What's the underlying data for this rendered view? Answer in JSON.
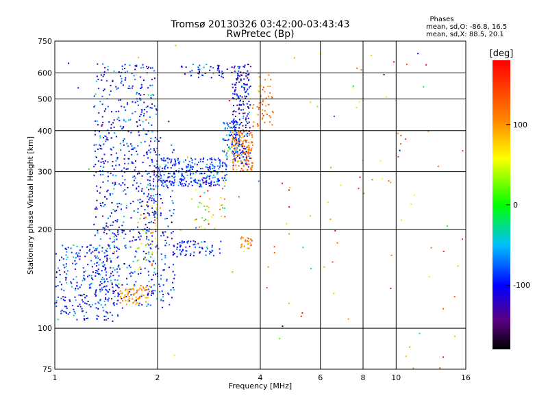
{
  "chart_data": {
    "type": "scatter",
    "title": "Tromsø 20130326 03:42:00-03:43:43",
    "subtitle": "RwPretec (Bp)",
    "xlabel": "Frequency [MHz]",
    "ylabel": "Stationary phase Virtual Height [km]",
    "x_scale": "log",
    "y_scale": "log",
    "xlim": [
      1,
      16
    ],
    "ylim": [
      75,
      750
    ],
    "xticks": [
      1,
      2,
      4,
      6,
      8,
      10,
      16
    ],
    "xtick_labels": [
      "1",
      "2",
      "4",
      "6",
      "8",
      "10",
      "16"
    ],
    "yticks": [
      75,
      100,
      200,
      300,
      400,
      500,
      600,
      750
    ],
    "ytick_labels": [
      "75",
      "100",
      "200",
      "300",
      "400",
      "500",
      "600",
      "750"
    ],
    "grid": true,
    "color_variable": "phase",
    "colorbar": {
      "label": "[deg]",
      "range": [
        -180,
        180
      ],
      "ticks": [
        100,
        0,
        -100
      ],
      "tick_labels": [
        "100",
        "0",
        "-100"
      ]
    },
    "annotations": {
      "heading": "Phases",
      "line_o": "mean, sd,O: -86.8, 16.5",
      "line_x": "mean, sd,X: 88.5, 20.1"
    },
    "series": [
      {
        "name": "O",
        "phase_mean": -86.8,
        "phase_sd": 16.5
      },
      {
        "name": "X",
        "phase_mean": 88.5,
        "phase_sd": 20.1
      }
    ],
    "clusters": [
      {
        "x": [
          1.0,
          1.55
        ],
        "y": [
          105,
          180
        ],
        "phase_mean": -90,
        "phase_sd": 30,
        "count": 260
      },
      {
        "x": [
          1.3,
          2.0
        ],
        "y": [
          115,
          640
        ],
        "phase_mean": -95,
        "phase_sd": 30,
        "count": 650
      },
      {
        "x": [
          1.55,
          1.9
        ],
        "y": [
          118,
          135
        ],
        "phase_mean": 100,
        "phase_sd": 15,
        "count": 70
      },
      {
        "x": [
          1.75,
          2.0
        ],
        "y": [
          150,
          240
        ],
        "phase_mean": 80,
        "phase_sd": 40,
        "count": 45
      },
      {
        "x": [
          1.85,
          2.25
        ],
        "y": [
          115,
          390
        ],
        "phase_mean": -90,
        "phase_sd": 25,
        "count": 160
      },
      {
        "x": [
          2.0,
          3.2
        ],
        "y": [
          270,
          330
        ],
        "phase_mean": -90,
        "phase_sd": 25,
        "count": 260
      },
      {
        "x": [
          2.2,
          3.1
        ],
        "y": [
          165,
          185
        ],
        "phase_mean": -95,
        "phase_sd": 20,
        "count": 70
      },
      {
        "x": [
          2.3,
          3.2
        ],
        "y": [
          580,
          640
        ],
        "phase_mean": -95,
        "phase_sd": 20,
        "count": 45
      },
      {
        "x": [
          2.5,
          3.2
        ],
        "y": [
          200,
          280
        ],
        "phase_mean": 60,
        "phase_sd": 60,
        "count": 40
      },
      {
        "x": [
          3.1,
          3.5
        ],
        "y": [
          330,
          430
        ],
        "phase_mean": -70,
        "phase_sd": 40,
        "count": 80
      },
      {
        "x": [
          3.3,
          3.75
        ],
        "y": [
          310,
          640
        ],
        "phase_mean": -110,
        "phase_sd": 30,
        "count": 230
      },
      {
        "x": [
          3.3,
          3.8
        ],
        "y": [
          300,
          400
        ],
        "phase_mean": 110,
        "phase_sd": 15,
        "count": 120
      },
      {
        "x": [
          3.5,
          3.8
        ],
        "y": [
          175,
          190
        ],
        "phase_mean": 110,
        "phase_sd": 15,
        "count": 25
      },
      {
        "x": [
          3.8,
          4.4
        ],
        "y": [
          400,
          520
        ],
        "phase_mean": 120,
        "phase_sd": 15,
        "count": 40
      },
      {
        "x": [
          3.8,
          4.3
        ],
        "y": [
          510,
          600
        ],
        "phase_mean": 100,
        "phase_sd": 20,
        "count": 15
      },
      {
        "x": [
          4.0,
          16.0
        ],
        "y": [
          75,
          700
        ],
        "phase_mean": 120,
        "phase_sd": 50,
        "count": 70
      },
      {
        "x": [
          1.05,
          16.0
        ],
        "y": [
          75,
          750
        ],
        "phase_mean": 0,
        "phase_sd": 100,
        "count": 40
      }
    ]
  }
}
